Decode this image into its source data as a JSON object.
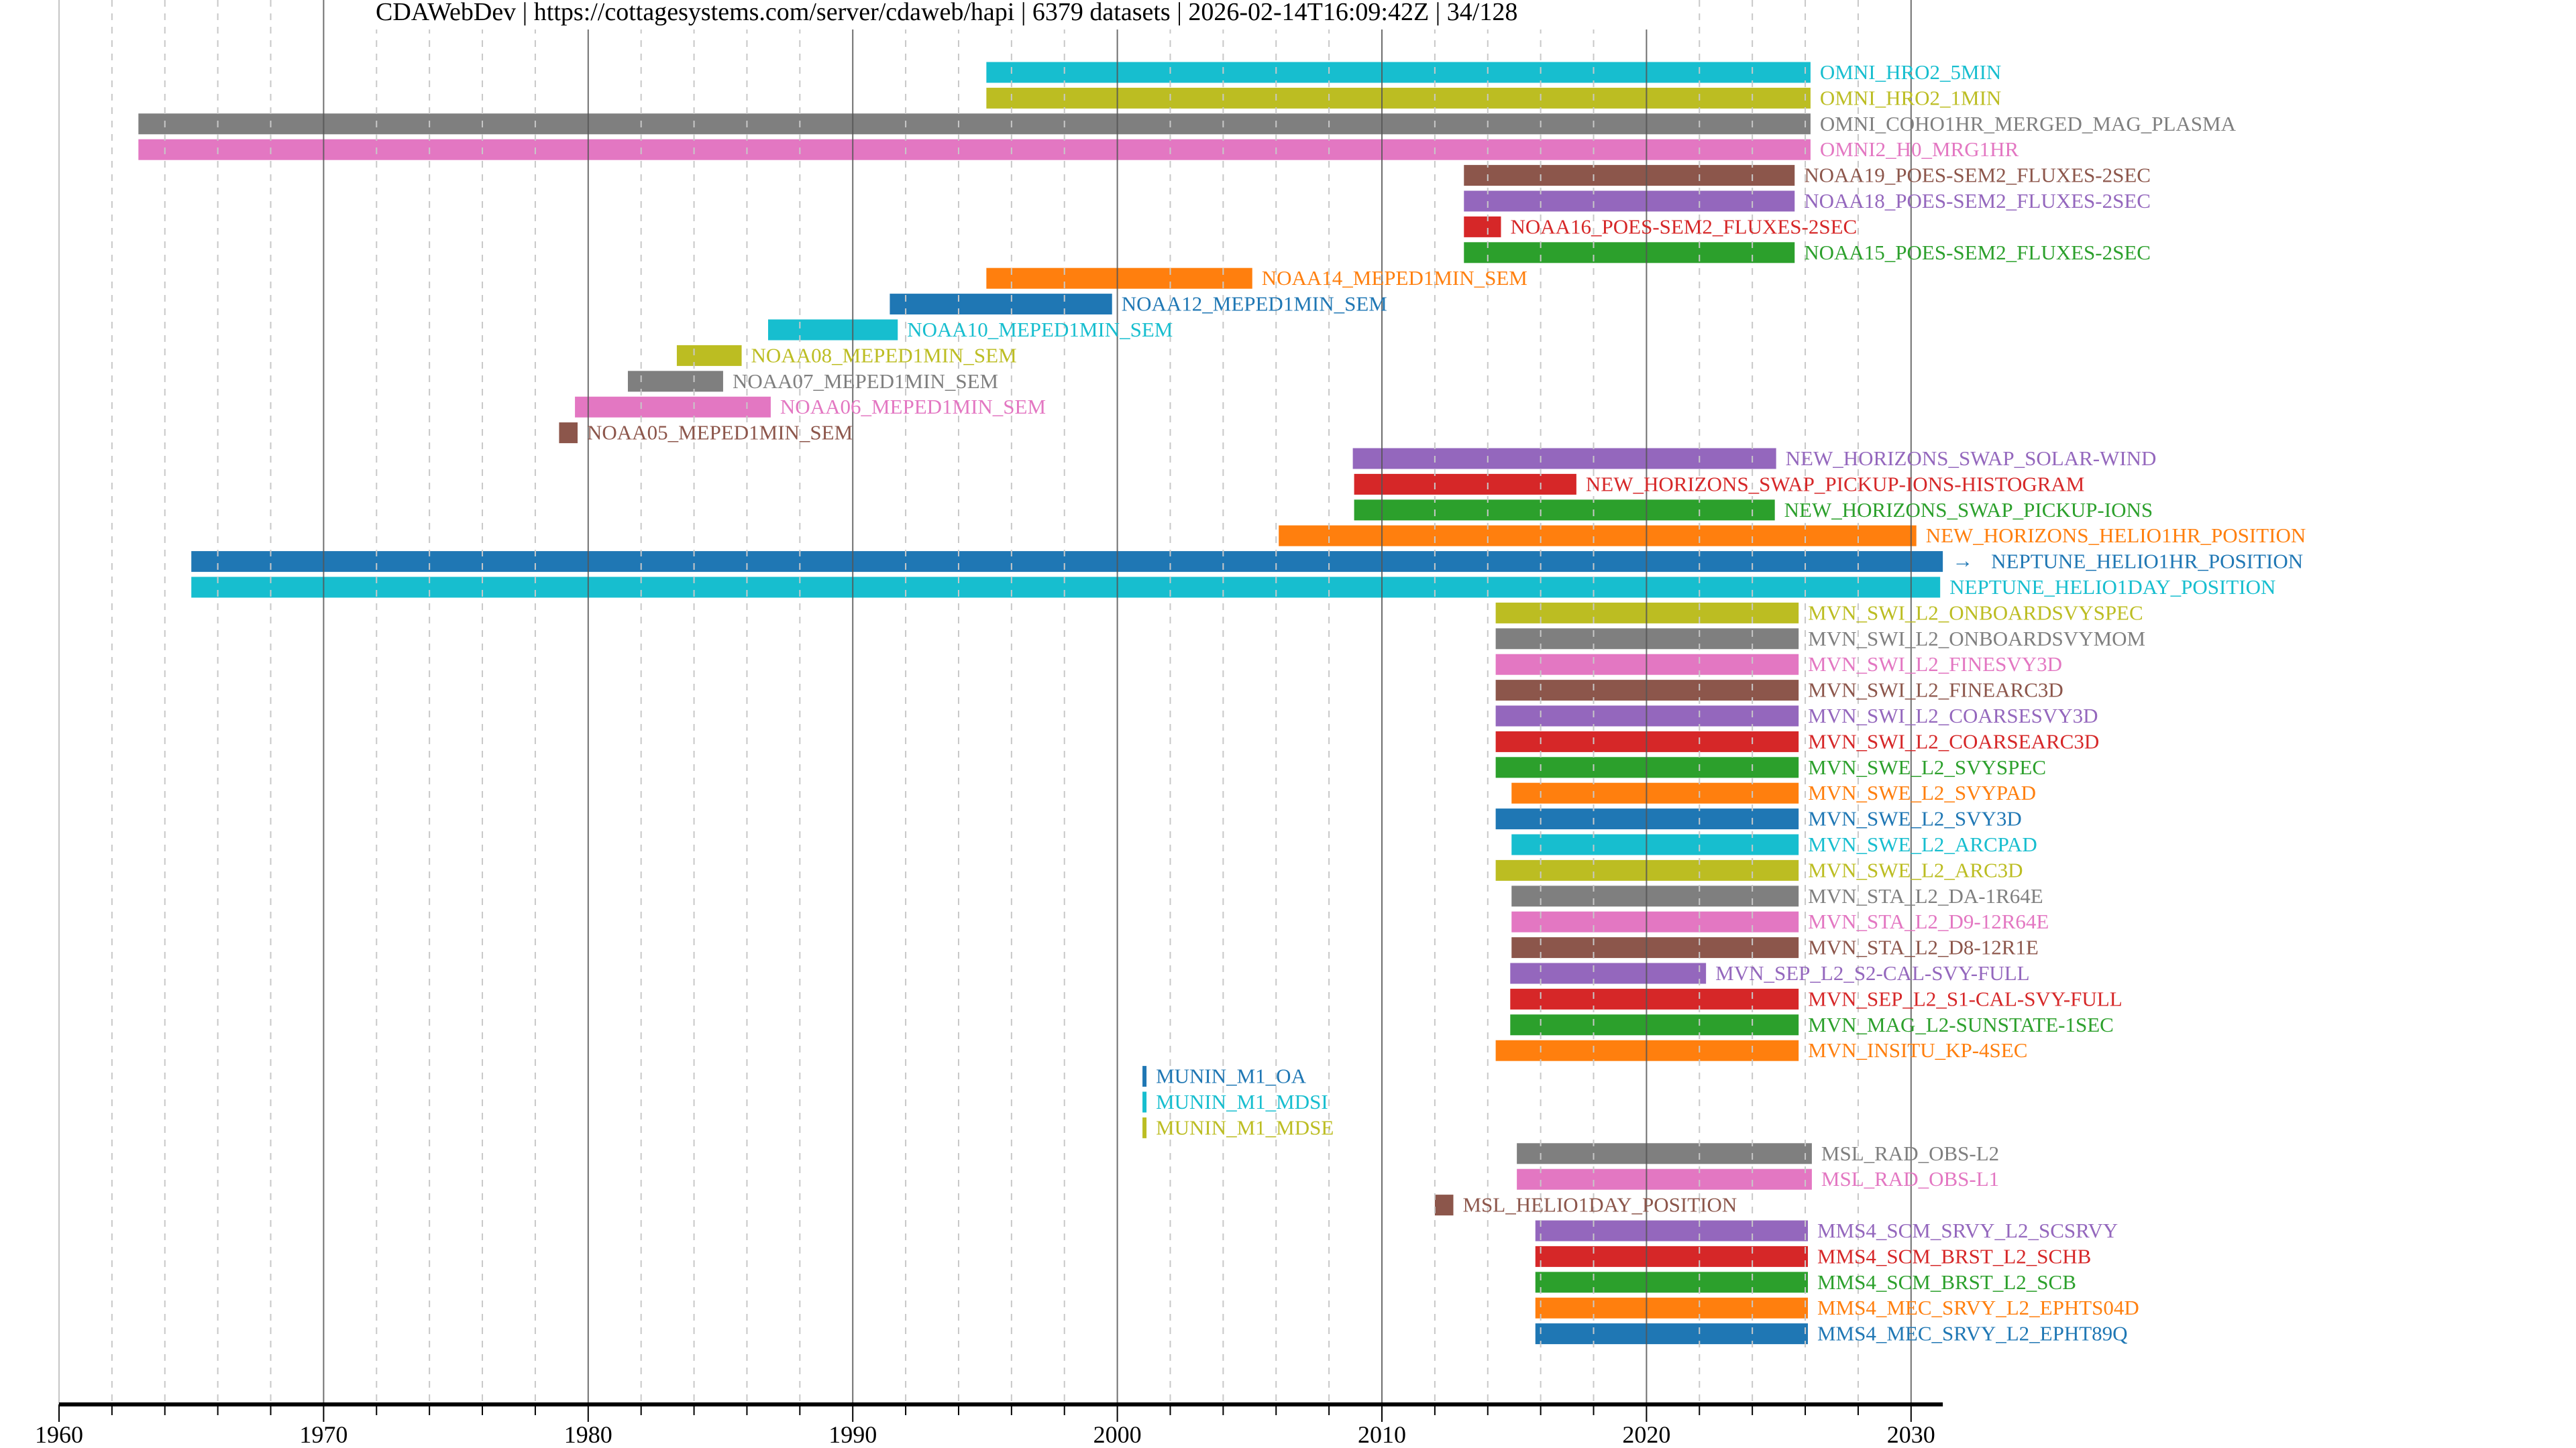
{
  "chart_data": {
    "type": "bar",
    "orientation": "horizontal-timeline",
    "title": "CDAWebDev | https://cottagesystems.com/server/cdaweb/hapi | 6379 datasets | 2026-02-14T16:09:42Z | 34/128",
    "xlabel": "",
    "ylabel": "",
    "xlim": [
      1960,
      2031.2
    ],
    "xticks": [
      "1960",
      "1970",
      "1980",
      "1990",
      "2000",
      "2010",
      "2020",
      "2030"
    ],
    "grid": {
      "major": "every 10 years, solid",
      "minor": "every 2 years, dashed"
    },
    "legend": "none (labels beside bars)",
    "colors": {
      "blue": "#1f77b4",
      "orange": "#ff7f0e",
      "green": "#2ca02c",
      "red": "#d62728",
      "purple": "#9467bd",
      "brown": "#8c564b",
      "pink": "#e377c2",
      "gray": "#7f7f7f",
      "olive": "#bcbd22",
      "cyan": "#17becf"
    },
    "series": [
      {
        "name": "OMNI_HRO2_5MIN",
        "start": 1995.05,
        "end": 2026.2,
        "color": "#17becf"
      },
      {
        "name": "OMNI_HRO2_1MIN",
        "start": 1995.05,
        "end": 2026.2,
        "color": "#bcbd22"
      },
      {
        "name": "OMNI_COHO1HR_MERGED_MAG_PLASMA",
        "start": 1963.0,
        "end": 2026.2,
        "color": "#7f7f7f"
      },
      {
        "name": "OMNI2_H0_MRG1HR",
        "start": 1963.0,
        "end": 2026.2,
        "color": "#e377c2"
      },
      {
        "name": "NOAA19_POES-SEM2_FLUXES-2SEC",
        "start": 2013.1,
        "end": 2025.6,
        "color": "#8c564b"
      },
      {
        "name": "NOAA18_POES-SEM2_FLUXES-2SEC",
        "start": 2013.1,
        "end": 2025.6,
        "color": "#9467bd"
      },
      {
        "name": "NOAA16_POES-SEM2_FLUXES-2SEC",
        "start": 2013.1,
        "end": 2014.5,
        "color": "#d62728"
      },
      {
        "name": "NOAA15_POES-SEM2_FLUXES-2SEC",
        "start": 2013.1,
        "end": 2025.6,
        "color": "#2ca02c"
      },
      {
        "name": "NOAA14_MEPED1MIN_SEM",
        "start": 1995.05,
        "end": 2005.1,
        "color": "#ff7f0e"
      },
      {
        "name": "NOAA12_MEPED1MIN_SEM",
        "start": 1991.4,
        "end": 1999.8,
        "color": "#1f77b4"
      },
      {
        "name": "NOAA10_MEPED1MIN_SEM",
        "start": 1986.8,
        "end": 1991.7,
        "color": "#17becf"
      },
      {
        "name": "NOAA08_MEPED1MIN_SEM",
        "start": 1983.35,
        "end": 1985.8,
        "color": "#bcbd22"
      },
      {
        "name": "NOAA07_MEPED1MIN_SEM",
        "start": 1981.5,
        "end": 1985.1,
        "color": "#7f7f7f"
      },
      {
        "name": "NOAA06_MEPED1MIN_SEM",
        "start": 1979.5,
        "end": 1986.9,
        "color": "#e377c2"
      },
      {
        "name": "NOAA05_MEPED1MIN_SEM",
        "start": 1978.9,
        "end": 1979.6,
        "color": "#8c564b"
      },
      {
        "name": "NEW_HORIZONS_SWAP_SOLAR-WIND",
        "start": 2008.9,
        "end": 2024.9,
        "color": "#9467bd"
      },
      {
        "name": "NEW_HORIZONS_SWAP_PICKUP-IONS-HISTOGRAM",
        "start": 2008.95,
        "end": 2017.35,
        "color": "#d62728"
      },
      {
        "name": "NEW_HORIZONS_SWAP_PICKUP-IONS",
        "start": 2008.95,
        "end": 2024.85,
        "color": "#2ca02c"
      },
      {
        "name": "NEW_HORIZONS_HELIO1HR_POSITION",
        "start": 2006.1,
        "end": 2030.2,
        "color": "#ff7f0e"
      },
      {
        "name": "NEPTUNE_HELIO1HR_POSITION",
        "start": 1965.0,
        "end": 2031.2,
        "color": "#1f77b4",
        "continues": true
      },
      {
        "name": "NEPTUNE_HELIO1DAY_POSITION",
        "start": 1965.0,
        "end": 2031.1,
        "color": "#17becf"
      },
      {
        "name": "MVN_SWI_L2_ONBOARDSVYSPEC",
        "start": 2014.3,
        "end": 2025.75,
        "color": "#bcbd22"
      },
      {
        "name": "MVN_SWI_L2_ONBOARDSVYMOM",
        "start": 2014.3,
        "end": 2025.75,
        "color": "#7f7f7f"
      },
      {
        "name": "MVN_SWI_L2_FINESVY3D",
        "start": 2014.3,
        "end": 2025.75,
        "color": "#e377c2"
      },
      {
        "name": "MVN_SWI_L2_FINEARC3D",
        "start": 2014.3,
        "end": 2025.75,
        "color": "#8c564b"
      },
      {
        "name": "MVN_SWI_L2_COARSESVY3D",
        "start": 2014.3,
        "end": 2025.75,
        "color": "#9467bd"
      },
      {
        "name": "MVN_SWI_L2_COARSEARC3D",
        "start": 2014.3,
        "end": 2025.75,
        "color": "#d62728"
      },
      {
        "name": "MVN_SWE_L2_SVYSPEC",
        "start": 2014.3,
        "end": 2025.75,
        "color": "#2ca02c"
      },
      {
        "name": "MVN_SWE_L2_SVYPAD",
        "start": 2014.9,
        "end": 2025.75,
        "color": "#ff7f0e"
      },
      {
        "name": "MVN_SWE_L2_SVY3D",
        "start": 2014.3,
        "end": 2025.75,
        "color": "#1f77b4"
      },
      {
        "name": "MVN_SWE_L2_ARCPAD",
        "start": 2014.9,
        "end": 2025.75,
        "color": "#17becf"
      },
      {
        "name": "MVN_SWE_L2_ARC3D",
        "start": 2014.3,
        "end": 2025.75,
        "color": "#bcbd22"
      },
      {
        "name": "MVN_STA_L2_DA-1R64E",
        "start": 2014.9,
        "end": 2025.75,
        "color": "#7f7f7f"
      },
      {
        "name": "MVN_STA_L2_D9-12R64E",
        "start": 2014.9,
        "end": 2025.75,
        "color": "#e377c2"
      },
      {
        "name": "MVN_STA_L2_D8-12R1E",
        "start": 2014.9,
        "end": 2025.75,
        "color": "#8c564b"
      },
      {
        "name": "MVN_SEP_L2_S2-CAL-SVY-FULL",
        "start": 2014.85,
        "end": 2022.25,
        "color": "#9467bd"
      },
      {
        "name": "MVN_SEP_L2_S1-CAL-SVY-FULL",
        "start": 2014.85,
        "end": 2025.75,
        "color": "#d62728"
      },
      {
        "name": "MVN_MAG_L2-SUNSTATE-1SEC",
        "start": 2014.85,
        "end": 2025.75,
        "color": "#2ca02c"
      },
      {
        "name": "MVN_INSITU_KP-4SEC",
        "start": 2014.3,
        "end": 2025.75,
        "color": "#ff7f0e"
      },
      {
        "name": "MUNIN_M1_OA",
        "start": 2000.95,
        "end": 2001.1,
        "color": "#1f77b4"
      },
      {
        "name": "MUNIN_M1_MDSI",
        "start": 2000.95,
        "end": 2001.1,
        "color": "#17becf"
      },
      {
        "name": "MUNIN_M1_MDSE",
        "start": 2000.95,
        "end": 2001.1,
        "color": "#bcbd22"
      },
      {
        "name": "MSL_RAD_OBS-L2",
        "start": 2015.1,
        "end": 2026.25,
        "color": "#7f7f7f"
      },
      {
        "name": "MSL_RAD_OBS-L1",
        "start": 2015.1,
        "end": 2026.25,
        "color": "#e377c2"
      },
      {
        "name": "MSL_HELIO1DAY_POSITION",
        "start": 2012.0,
        "end": 2012.7,
        "color": "#8c564b"
      },
      {
        "name": "MMS4_SCM_SRVY_L2_SCSRVY",
        "start": 2015.8,
        "end": 2026.1,
        "color": "#9467bd"
      },
      {
        "name": "MMS4_SCM_BRST_L2_SCHB",
        "start": 2015.8,
        "end": 2026.1,
        "color": "#d62728"
      },
      {
        "name": "MMS4_SCM_BRST_L2_SCB",
        "start": 2015.8,
        "end": 2026.1,
        "color": "#2ca02c"
      },
      {
        "name": "MMS4_MEC_SRVY_L2_EPHTS04D",
        "start": 2015.8,
        "end": 2026.1,
        "color": "#ff7f0e"
      },
      {
        "name": "MMS4_MEC_SRVY_L2_EPHT89Q",
        "start": 2015.8,
        "end": 2026.1,
        "color": "#1f77b4"
      }
    ]
  }
}
